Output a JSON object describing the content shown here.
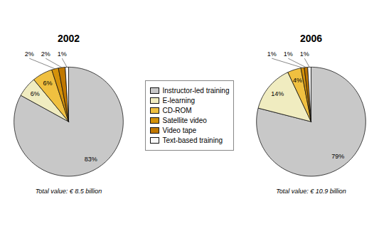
{
  "chart_data": [
    {
      "type": "pie",
      "title": "2002",
      "categories": [
        "Instructor-led training",
        "E-learning",
        "CD-ROM",
        "Satellite video",
        "Video tape",
        "Text-based training"
      ],
      "values": [
        83,
        6,
        6,
        2,
        2,
        1
      ],
      "value_labels": [
        "83%",
        "6%",
        "6%",
        "2%",
        "2%",
        "1%"
      ],
      "colors": [
        "#c8c8c8",
        "#f0ecc0",
        "#f0c040",
        "#d4920a",
        "#c07800",
        "#f8f8f8"
      ],
      "data_labels": true,
      "annotations": [
        "Total value: € 8.5 billion"
      ],
      "legend": "center"
    },
    {
      "type": "pie",
      "title": "2006",
      "categories": [
        "Instructor-led training",
        "E-learning",
        "CD-ROM",
        "Satellite video",
        "Video tape",
        "Text-based training"
      ],
      "values": [
        79,
        14,
        4,
        1,
        1,
        1
      ],
      "value_labels": [
        "79%",
        "14%",
        "4%",
        "1%",
        "1%",
        "1%"
      ],
      "colors": [
        "#c8c8c8",
        "#f0ecc0",
        "#f0c040",
        "#d4920a",
        "#c07800",
        "#f8f8f8"
      ],
      "data_labels": true,
      "annotations": [
        "Total value: € 10.9 billion"
      ]
    }
  ]
}
